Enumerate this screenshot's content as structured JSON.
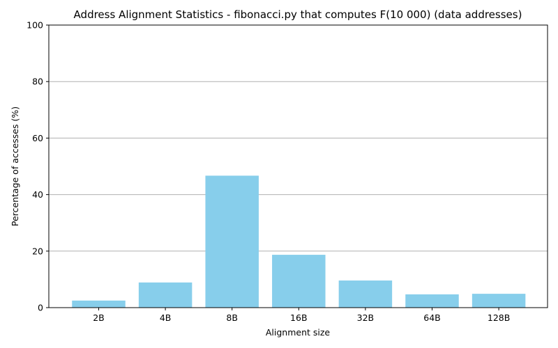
{
  "chart_data": {
    "type": "bar",
    "title": "Address Alignment Statistics - fibonacci.py that computes F(10 000) (data addresses)",
    "xlabel": "Alignment size",
    "ylabel": "Percentage of accesses (%)",
    "categories": [
      "2B",
      "4B",
      "8B",
      "16B",
      "32B",
      "64B",
      "128B"
    ],
    "values": [
      2.5,
      8.9,
      46.7,
      18.7,
      9.6,
      4.7,
      4.9
    ],
    "ylim": [
      0,
      100
    ],
    "yticks": [
      0,
      20,
      40,
      60,
      80,
      100
    ],
    "grid": "y",
    "bar_color": "#87ceeb"
  }
}
